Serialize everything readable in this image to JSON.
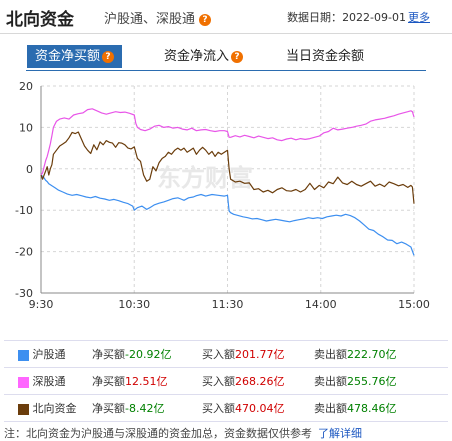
{
  "header": {
    "title": "北向资金",
    "subtitle": "沪股通、深股通",
    "help": "?",
    "date_label": "数据日期：",
    "date": "2022-09-01",
    "more": "更多"
  },
  "tabs": [
    {
      "label": "资金净买额",
      "active": true,
      "help": "?"
    },
    {
      "label": "资金净流入",
      "active": false,
      "help": "?"
    },
    {
      "label": "当日资金余额",
      "active": false
    }
  ],
  "watermark": "东方财富",
  "chart_data": {
    "type": "line",
    "x_labels": [
      "9:30",
      "10:30",
      "11:30",
      "14:00",
      "15:00"
    ],
    "y_ticks": [
      20,
      10,
      0,
      -10,
      -20,
      -30
    ],
    "ylim": [
      -30,
      20
    ],
    "grid": true,
    "series": [
      {
        "name": "沪股通",
        "color": "#3d8ff0",
        "x": [
          0,
          1,
          2,
          3,
          4,
          5,
          7,
          9,
          11,
          14,
          17,
          20,
          23,
          26,
          29,
          32,
          35,
          38,
          41,
          44,
          47,
          50,
          53,
          56,
          59,
          60,
          62,
          65,
          68,
          70,
          73,
          76,
          79,
          82,
          85,
          88,
          90,
          92,
          95,
          98,
          100,
          103,
          106,
          110,
          114,
          118,
          120,
          121,
          122,
          124,
          127,
          130,
          133,
          136,
          139,
          142,
          145,
          148,
          151,
          154,
          157,
          160,
          163,
          166,
          169,
          172,
          175,
          178,
          181,
          184,
          187,
          190,
          193,
          196,
          199,
          202,
          205,
          208,
          211,
          214,
          217,
          220,
          223,
          226,
          229,
          232,
          235,
          238,
          240
        ],
        "values": [
          -1.5,
          -1.8,
          -2.2,
          -2.8,
          -3.1,
          -3.6,
          -4.1,
          -4.6,
          -5.1,
          -5.6,
          -6.1,
          -6.4,
          -6.2,
          -6.5,
          -6.8,
          -7.0,
          -6.7,
          -7.1,
          -7.3,
          -7.6,
          -7.4,
          -7.7,
          -8.1,
          -8.4,
          -9.0,
          -10.0,
          -9.4,
          -9.0,
          -9.8,
          -9.4,
          -8.7,
          -8.3,
          -8.0,
          -7.6,
          -7.2,
          -7.0,
          -7.3,
          -7.6,
          -7.0,
          -6.8,
          -6.5,
          -6.2,
          -6.6,
          -6.2,
          -6.4,
          -6.6,
          -6.4,
          -10.2,
          -10.6,
          -11.0,
          -11.3,
          -11.6,
          -11.8,
          -12.1,
          -12.0,
          -12.3,
          -12.6,
          -12.4,
          -12.2,
          -12.4,
          -12.6,
          -12.8,
          -12.5,
          -12.3,
          -12.1,
          -11.8,
          -12.0,
          -11.8,
          -12.0,
          -11.6,
          -11.4,
          -11.2,
          -11.4,
          -11.0,
          -11.3,
          -11.8,
          -12.6,
          -13.6,
          -14.6,
          -14.9,
          -15.8,
          -16.4,
          -17.2,
          -17.3,
          -18.1,
          -17.7,
          -18.2,
          -18.9,
          -20.92
        ]
      },
      {
        "name": "深股通",
        "color": "#e855e8",
        "x": [
          0,
          1,
          2,
          3,
          4,
          5,
          6,
          7,
          8,
          10,
          12,
          15,
          18,
          21,
          24,
          27,
          30,
          33,
          36,
          39,
          42,
          45,
          48,
          51,
          54,
          57,
          60,
          61,
          62,
          64,
          67,
          70,
          73,
          76,
          79,
          82,
          85,
          88,
          91,
          94,
          97,
          100,
          103,
          106,
          109,
          112,
          115,
          118,
          120,
          121,
          122,
          125,
          128,
          131,
          134,
          137,
          140,
          143,
          146,
          149,
          152,
          155,
          158,
          161,
          164,
          167,
          170,
          173,
          176,
          179,
          182,
          185,
          188,
          191,
          194,
          197,
          200,
          203,
          206,
          209,
          212,
          215,
          218,
          221,
          224,
          227,
          230,
          233,
          236,
          238,
          239,
          240
        ],
        "values": [
          -1.5,
          -1.0,
          0.5,
          2.0,
          3.0,
          4.5,
          6.0,
          8.0,
          10.0,
          11.5,
          12.0,
          12.3,
          12.0,
          13.0,
          13.3,
          13.5,
          14.3,
          14.5,
          14.0,
          13.5,
          13.2,
          13.5,
          13.8,
          13.6,
          13.7,
          13.4,
          13.0,
          11.0,
          10.0,
          9.5,
          9.2,
          9.6,
          10.3,
          10.5,
          10.0,
          10.2,
          9.8,
          10.0,
          9.6,
          9.4,
          9.8,
          9.2,
          9.4,
          9.5,
          9.2,
          9.0,
          9.2,
          9.2,
          9.0,
          7.6,
          7.6,
          8.0,
          7.7,
          8.1,
          7.8,
          7.5,
          7.9,
          7.6,
          7.3,
          7.5,
          7.0,
          6.8,
          7.2,
          7.4,
          7.0,
          7.3,
          7.1,
          7.3,
          7.6,
          7.9,
          8.7,
          9.0,
          9.8,
          9.4,
          9.6,
          9.8,
          10.0,
          10.3,
          10.5,
          10.8,
          11.5,
          11.8,
          12.0,
          12.2,
          12.5,
          12.8,
          13.2,
          13.5,
          13.8,
          14.0,
          13.8,
          12.51
        ]
      },
      {
        "name": "北向资金",
        "color": "#6b3d0c",
        "x": [
          0,
          1,
          2,
          3,
          4,
          5,
          6,
          7,
          8,
          10,
          12,
          14,
          16,
          18,
          20,
          22,
          24,
          26,
          28,
          30,
          32,
          34,
          36,
          38,
          40,
          42,
          44,
          46,
          48,
          50,
          52,
          54,
          56,
          58,
          60,
          62,
          64,
          66,
          68,
          70,
          72,
          74,
          76,
          78,
          80,
          82,
          84,
          86,
          88,
          90,
          92,
          94,
          96,
          98,
          100,
          102,
          104,
          106,
          108,
          110,
          112,
          114,
          116,
          118,
          120,
          121,
          122,
          125,
          128,
          131,
          134,
          137,
          140,
          143,
          146,
          149,
          152,
          155,
          158,
          161,
          164,
          167,
          170,
          173,
          176,
          179,
          182,
          185,
          188,
          191,
          194,
          197,
          200,
          203,
          206,
          209,
          212,
          215,
          218,
          221,
          224,
          227,
          230,
          233,
          236,
          238,
          239,
          240
        ],
        "values": [
          -1.5,
          -2.5,
          -1.5,
          -0.5,
          0.5,
          -1.5,
          0.0,
          1.0,
          3.5,
          4.5,
          5.5,
          6.0,
          6.5,
          7.5,
          8.8,
          8.5,
          8.9,
          7.2,
          5.5,
          4.5,
          3.7,
          5.8,
          4.6,
          6.5,
          5.8,
          6.8,
          6.4,
          6.2,
          5.2,
          6.3,
          6.2,
          5.8,
          5.0,
          4.8,
          5.3,
          2.5,
          1.8,
          -1.5,
          -3.0,
          -2.5,
          0.5,
          -0.5,
          1.5,
          2.5,
          3.0,
          4.0,
          3.5,
          4.5,
          5.0,
          4.5,
          5.0,
          4.0,
          4.5,
          5.0,
          3.5,
          4.5,
          5.2,
          4.5,
          3.5,
          4.2,
          3.0,
          4.0,
          3.5,
          4.0,
          4.5,
          0.0,
          -2.5,
          -3.2,
          -3.0,
          -3.5,
          -3.4,
          -5.0,
          -4.8,
          -5.6,
          -5.2,
          -5.8,
          -5.0,
          -4.6,
          -5.3,
          -5.4,
          -5.0,
          -5.6,
          -5.0,
          -3.5,
          -5.0,
          -4.0,
          -4.6,
          -3.2,
          -3.6,
          -2.0,
          -3.4,
          -3.8,
          -3.0,
          -3.8,
          -4.2,
          -3.6,
          -3.0,
          -4.2,
          -3.7,
          -4.3,
          -3.2,
          -3.6,
          -4.1,
          -3.8,
          -4.5,
          -4.0,
          -4.4,
          -8.42
        ]
      }
    ]
  },
  "legend": [
    {
      "name": "沪股通",
      "color": "#3d8ff0",
      "net_label": "净买额",
      "net": "-20.92亿",
      "net_color": "#008000",
      "buy_label": "买入额",
      "buy": "201.77亿",
      "sell_label": "卖出额",
      "sell": "222.70亿"
    },
    {
      "name": "深股通",
      "color": "#ff66ff",
      "net_label": "净买额",
      "net": "12.51亿",
      "net_color": "#d00000",
      "buy_label": "买入额",
      "buy": "268.26亿",
      "sell_label": "卖出额",
      "sell": "255.76亿"
    },
    {
      "name": "北向资金",
      "color": "#6b3d0c",
      "net_label": "净买额",
      "net": "-8.42亿",
      "net_color": "#008000",
      "buy_label": "买入额",
      "buy": "470.04亿",
      "sell_label": "卖出额",
      "sell": "478.46亿"
    }
  ],
  "footer": {
    "note": "注：北向资金为沪股通与深股通的资金加总，资金数据仅供参考",
    "link": "了解详细"
  }
}
